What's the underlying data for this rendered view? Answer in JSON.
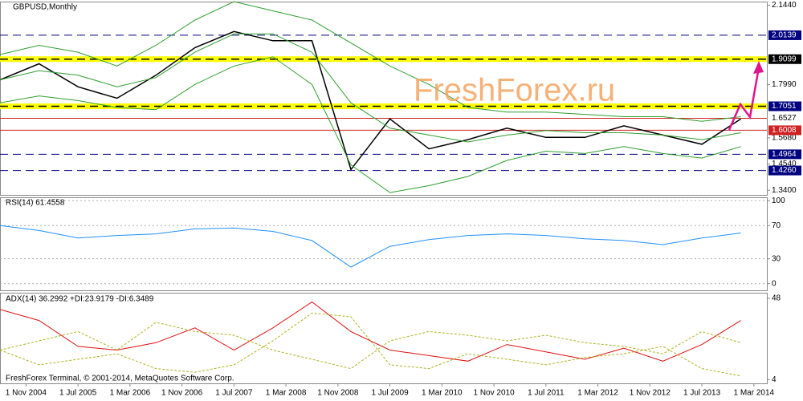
{
  "chart_data": [
    {
      "type": "line",
      "title": "GBPUSD,Monthly",
      "watermark": "FreshForex.ru",
      "x": [
        "2004-07-01",
        "2005-01-01",
        "2005-07-01",
        "2006-01-01",
        "2006-07-01",
        "2007-01-01",
        "2007-07-01",
        "2008-01-01",
        "2008-07-01",
        "2009-01-01",
        "2009-07-01",
        "2010-01-01",
        "2010-07-01",
        "2011-01-01",
        "2011-07-01",
        "2012-01-01",
        "2012-07-01",
        "2013-01-01",
        "2013-07-01",
        "2014-01-01"
      ],
      "xlim": [
        "2004-07-01",
        "2014-05-01"
      ],
      "xticks": [
        {
          "value": "2004-11-01",
          "label": "1 Nov 2004"
        },
        {
          "value": "2005-07-01",
          "label": "1 Jul 2005"
        },
        {
          "value": "2006-03-01",
          "label": "1 Mar 2006"
        },
        {
          "value": "2006-11-01",
          "label": "1 Nov 2006"
        },
        {
          "value": "2007-07-01",
          "label": "1 Jul 2007"
        },
        {
          "value": "2008-03-01",
          "label": "1 Mar 2008"
        },
        {
          "value": "2008-11-01",
          "label": "1 Nov 2008"
        },
        {
          "value": "2009-07-01",
          "label": "1 Jul 2009"
        },
        {
          "value": "2010-03-01",
          "label": "1 Mar 2010"
        },
        {
          "value": "2010-11-01",
          "label": "1 Nov 2010"
        },
        {
          "value": "2011-07-01",
          "label": "1 Jul 2011"
        },
        {
          "value": "2012-03-01",
          "label": "1 Mar 2012"
        },
        {
          "value": "2012-11-01",
          "label": "1 Nov 2012"
        },
        {
          "value": "2013-07-01",
          "label": "1 Jul 2013"
        },
        {
          "value": "2014-03-01",
          "label": "1 Mar 2014"
        }
      ],
      "series": [
        {
          "color": "#000000",
          "values": [
            1.82,
            1.89,
            1.79,
            1.74,
            1.84,
            1.96,
            2.03,
            1.99,
            1.99,
            1.43,
            1.65,
            1.52,
            1.56,
            1.61,
            1.57,
            1.57,
            1.62,
            1.58,
            1.54,
            1.65
          ]
        },
        {
          "color": "#2e9e2e",
          "values": [
            1.93,
            1.97,
            1.94,
            1.88,
            1.97,
            2.08,
            2.16,
            2.12,
            2.08,
            1.98,
            1.88,
            1.8,
            1.7,
            1.68,
            1.68,
            1.67,
            1.66,
            1.66,
            1.64,
            1.66
          ]
        },
        {
          "color": "#2e9e2e",
          "values": [
            1.82,
            1.86,
            1.84,
            1.79,
            1.83,
            1.94,
            2.02,
            2.02,
            1.94,
            1.72,
            1.61,
            1.58,
            1.55,
            1.58,
            1.6,
            1.59,
            1.59,
            1.58,
            1.56,
            1.59
          ]
        },
        {
          "color": "#2e9e2e",
          "values": [
            1.72,
            1.75,
            1.73,
            1.7,
            1.69,
            1.8,
            1.88,
            1.92,
            1.8,
            1.45,
            1.33,
            1.36,
            1.4,
            1.47,
            1.51,
            1.5,
            1.53,
            1.5,
            1.48,
            1.53
          ]
        }
      ],
      "ylim": [
        1.32,
        2.16
      ],
      "yticks": [
        {
          "value": 2.144,
          "label": "2.1440"
        },
        {
          "value": 1.799,
          "label": "1.7990"
        },
        {
          "value": 1.568,
          "label": "1.5680"
        },
        {
          "value": 1.454,
          "label": "1.4540"
        },
        {
          "value": 1.34,
          "label": "1.3400"
        }
      ],
      "levels": [
        {
          "value": 2.0139,
          "label": "2.0139",
          "color": "#000080",
          "label_bg": "#000080"
        },
        {
          "value": 1.9099,
          "label": "1.9099",
          "color": "#ffff00",
          "label_bg": "#000000"
        },
        {
          "value": 1.7051,
          "label": "1.7051",
          "color": "#ffff00",
          "label_bg": "#000080"
        },
        {
          "value": 1.6527,
          "label": "1.6527",
          "color": "#d02020",
          "label_bg": "#ffffff"
        },
        {
          "value": 1.6008,
          "label": "1.6008",
          "color": "#d02020",
          "label_bg": "#d02020"
        },
        {
          "value": 1.4964,
          "label": "1.4964",
          "color": "#000080",
          "label_bg": "#000080"
        },
        {
          "value": 1.426,
          "label": "1.4260",
          "color": "#000080",
          "label_bg": "#000080"
        }
      ]
    },
    {
      "type": "line",
      "title": "RSI(14) 61.4558",
      "series": [
        {
          "color": "#1e90ff",
          "values": [
            70,
            64,
            55,
            58,
            60,
            66,
            67,
            63,
            52,
            20,
            45,
            53,
            58,
            60,
            58,
            54,
            52,
            47,
            55,
            61
          ]
        }
      ],
      "ylim": [
        -8,
        104
      ],
      "yticks": [
        100,
        70,
        30,
        0
      ]
    },
    {
      "type": "line",
      "title": "ADX(14) 36.2992 +DI:23.9179 -DI:6.3489",
      "footer": "FreshForex Terminal, © 2001-2014, MetaQuotes Software Corp.",
      "series": [
        {
          "color": "#e01010",
          "values": [
            42,
            36,
            22,
            20,
            24,
            32,
            20,
            32,
            46,
            30,
            20,
            17,
            14,
            23,
            19,
            15,
            21,
            14,
            23,
            36
          ]
        },
        {
          "color": "#b0b020",
          "dashed": true,
          "values": [
            20,
            25,
            30,
            20,
            35,
            30,
            28,
            20,
            15,
            10,
            25,
            30,
            28,
            25,
            28,
            24,
            22,
            18,
            30,
            24
          ]
        },
        {
          "color": "#b0b020",
          "dashed": true,
          "values": [
            20,
            12,
            15,
            18,
            10,
            8,
            12,
            25,
            40,
            38,
            12,
            10,
            18,
            15,
            12,
            16,
            18,
            22,
            10,
            6
          ]
        }
      ],
      "ylim": [
        2,
        51
      ],
      "yticks": [
        48,
        4
      ]
    }
  ]
}
